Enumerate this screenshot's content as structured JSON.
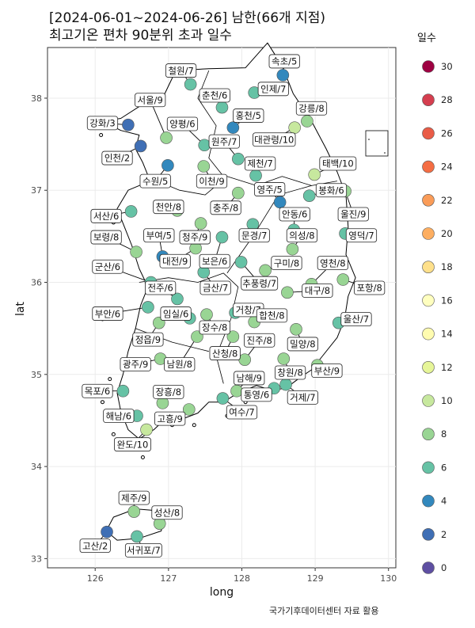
{
  "title_line1": "[2024-06-01~2024-06-26] 남한(66개 지점)",
  "title_line2": "최고기온 편차 90분위 초과 일수",
  "caption": "국가기후데이터센터 자료 활용",
  "axes": {
    "xlabel": "long",
    "ylabel": "lat",
    "xlim": [
      125.35,
      130.1
    ],
    "ylim": [
      32.9,
      38.55
    ],
    "xticks": [
      "126",
      "127",
      "128",
      "129",
      "130"
    ],
    "yticks": [
      "33",
      "34",
      "35",
      "36",
      "37",
      "38"
    ]
  },
  "legend": {
    "title": "일수",
    "items": [
      {
        "label": "30",
        "color": "#9e0142"
      },
      {
        "label": "28",
        "color": "#d53e4f"
      },
      {
        "label": "26",
        "color": "#e95c47"
      },
      {
        "label": "24",
        "color": "#f46d43"
      },
      {
        "label": "22",
        "color": "#fa9c58"
      },
      {
        "label": "20",
        "color": "#fdae61"
      },
      {
        "label": "18",
        "color": "#fee08b"
      },
      {
        "label": "16",
        "color": "#ffffbf"
      },
      {
        "label": "14",
        "color": "#fffcb0"
      },
      {
        "label": "12",
        "color": "#e6f598"
      },
      {
        "label": "10",
        "color": "#c7e89e"
      },
      {
        "label": "8",
        "color": "#99d594"
      },
      {
        "label": "6",
        "color": "#66c2a5"
      },
      {
        "label": "4",
        "color": "#3288bd"
      },
      {
        "label": "2",
        "color": "#3f6fb5"
      },
      {
        "label": "0",
        "color": "#5e4fa2"
      }
    ]
  },
  "map_data": {
    "type": "scatter-map",
    "stations": [
      {
        "name": "속초",
        "lon": 128.56,
        "lat": 38.25,
        "value": 5,
        "label": "속초/5",
        "llon": 128.58,
        "llat": 38.4
      },
      {
        "name": "철원",
        "lon": 127.3,
        "lat": 38.15,
        "value": 7,
        "label": "철원/7",
        "llon": 127.17,
        "llat": 38.3
      },
      {
        "name": "인제",
        "lon": 128.17,
        "lat": 38.06,
        "value": 7,
        "label": "인제/7",
        "llon": 128.43,
        "llat": 38.1
      },
      {
        "name": "춘천",
        "lon": 127.73,
        "lat": 37.9,
        "value": 6,
        "label": "춘천/6",
        "llon": 127.63,
        "llat": 38.03
      },
      {
        "name": "서울",
        "lon": 126.97,
        "lat": 37.57,
        "value": 9,
        "label": "서울/9",
        "llon": 126.75,
        "llat": 37.98
      },
      {
        "name": "강릉",
        "lon": 128.89,
        "lat": 37.75,
        "value": 8,
        "label": "강릉/8",
        "llon": 128.95,
        "llat": 37.89
      },
      {
        "name": "홍천",
        "lon": 127.88,
        "lat": 37.68,
        "value": 5,
        "label": "홍천/5",
        "llon": 128.09,
        "llat": 37.81
      },
      {
        "name": "강화",
        "lon": 126.45,
        "lat": 37.71,
        "value": 3,
        "label": "강화/3",
        "llon": 126.1,
        "llat": 37.73
      },
      {
        "name": "양평",
        "lon": 127.49,
        "lat": 37.49,
        "value": 6,
        "label": "양평/6",
        "llon": 127.19,
        "llat": 37.72
      },
      {
        "name": "대관령",
        "lon": 128.72,
        "lat": 37.68,
        "value": 10,
        "label": "대관령/10",
        "llon": 128.44,
        "llat": 37.55
      },
      {
        "name": "원주",
        "lon": 127.95,
        "lat": 37.34,
        "value": 7,
        "label": "원주/7",
        "llon": 127.76,
        "llat": 37.53
      },
      {
        "name": "인천",
        "lon": 126.62,
        "lat": 37.48,
        "value": 2,
        "label": "인천/2",
        "llon": 126.3,
        "llat": 37.35
      },
      {
        "name": "제천",
        "lon": 128.19,
        "lat": 37.16,
        "value": 7,
        "label": "제천/7",
        "llon": 128.25,
        "llat": 37.29
      },
      {
        "name": "태백",
        "lon": 128.99,
        "lat": 37.17,
        "value": 10,
        "label": "태백/10",
        "llon": 129.31,
        "llat": 37.29
      },
      {
        "name": "수원",
        "lon": 126.99,
        "lat": 37.27,
        "value": 5,
        "label": "수원/5",
        "llon": 126.82,
        "llat": 37.1
      },
      {
        "name": "이천",
        "lon": 127.48,
        "lat": 37.26,
        "value": 9,
        "label": "이천/9",
        "llon": 127.59,
        "llat": 37.1
      },
      {
        "name": "영주",
        "lon": 128.52,
        "lat": 36.87,
        "value": 5,
        "label": "영주/5",
        "llon": 128.38,
        "llat": 37.01
      },
      {
        "name": "봉화",
        "lon": 128.92,
        "lat": 36.94,
        "value": 6,
        "label": "봉화/6",
        "llon": 129.22,
        "llat": 37.0
      },
      {
        "name": "충주",
        "lon": 127.95,
        "lat": 36.97,
        "value": 8,
        "label": "충주/8",
        "llon": 127.78,
        "llat": 36.81
      },
      {
        "name": "천안",
        "lon": 127.12,
        "lat": 36.78,
        "value": 8,
        "label": "천안/8",
        "llon": 127.0,
        "llat": 36.82
      },
      {
        "name": "서산",
        "lon": 126.49,
        "lat": 36.77,
        "value": 6,
        "label": "서산/6",
        "llon": 126.15,
        "llat": 36.72
      },
      {
        "name": "안동",
        "lon": 128.71,
        "lat": 36.57,
        "value": 6,
        "label": "안동/6",
        "llon": 128.72,
        "llat": 36.74
      },
      {
        "name": "울진",
        "lon": 129.41,
        "lat": 36.99,
        "value": 9,
        "label": "울진/9",
        "llon": 129.52,
        "llat": 36.74
      },
      {
        "name": "보령",
        "lon": 126.56,
        "lat": 36.33,
        "value": 8,
        "label": "보령/8",
        "llon": 126.15,
        "llat": 36.49
      },
      {
        "name": "부여",
        "lon": 126.92,
        "lat": 36.28,
        "value": 5,
        "label": "부여/5",
        "llon": 126.87,
        "llat": 36.51
      },
      {
        "name": "청주",
        "lon": 127.44,
        "lat": 36.64,
        "value": 9,
        "label": "청주/9",
        "llon": 127.36,
        "llat": 36.49
      },
      {
        "name": "문경",
        "lon": 128.15,
        "lat": 36.63,
        "value": 7,
        "label": "문경/7",
        "llon": 128.17,
        "llat": 36.51
      },
      {
        "name": "의성",
        "lon": 128.69,
        "lat": 36.36,
        "value": 8,
        "label": "의성/8",
        "llon": 128.82,
        "llat": 36.51
      },
      {
        "name": "영덕",
        "lon": 129.41,
        "lat": 36.53,
        "value": 7,
        "label": "영덕/7",
        "llon": 129.63,
        "llat": 36.51
      },
      {
        "name": "군산",
        "lon": 126.76,
        "lat": 36.0,
        "value": 6,
        "label": "군산/6",
        "llon": 126.17,
        "llat": 36.17
      },
      {
        "name": "대전",
        "lon": 127.37,
        "lat": 36.37,
        "value": 9,
        "label": "대전/9",
        "llon": 127.09,
        "llat": 36.23
      },
      {
        "name": "보은",
        "lon": 127.73,
        "lat": 36.49,
        "value": 6,
        "label": "보은/6",
        "llon": 127.63,
        "llat": 36.23
      },
      {
        "name": "구미",
        "lon": 128.32,
        "lat": 36.13,
        "value": 8,
        "label": "구미/8",
        "llon": 128.61,
        "llat": 36.21
      },
      {
        "name": "영천",
        "lon": 128.95,
        "lat": 35.98,
        "value": 8,
        "label": "영천/8",
        "llon": 129.24,
        "llat": 36.21
      },
      {
        "name": "추풍령",
        "lon": 127.99,
        "lat": 36.22,
        "value": 7,
        "label": "추풍령/7",
        "llon": 128.24,
        "llat": 35.99
      },
      {
        "name": "전주",
        "lon": 127.12,
        "lat": 35.82,
        "value": 6,
        "label": "전주/6",
        "llon": 126.89,
        "llat": 35.94
      },
      {
        "name": "금산",
        "lon": 127.48,
        "lat": 36.11,
        "value": 7,
        "label": "금산/7",
        "llon": 127.64,
        "llat": 35.94
      },
      {
        "name": "포항",
        "lon": 129.38,
        "lat": 36.03,
        "value": 8,
        "label": "포항/8",
        "llon": 129.74,
        "llat": 35.94
      },
      {
        "name": "대구",
        "lon": 128.62,
        "lat": 35.89,
        "value": 8,
        "label": "대구/8",
        "llon": 129.03,
        "llat": 35.91
      },
      {
        "name": "부안",
        "lon": 126.72,
        "lat": 35.73,
        "value": 6,
        "label": "부안/6",
        "llon": 126.17,
        "llat": 35.66
      },
      {
        "name": "임실",
        "lon": 127.29,
        "lat": 35.61,
        "value": 6,
        "label": "임실/6",
        "llon": 127.1,
        "llat": 35.66
      },
      {
        "name": "거창",
        "lon": 127.91,
        "lat": 35.67,
        "value": 7,
        "label": "거창/7",
        "llon": 128.09,
        "llat": 35.7
      },
      {
        "name": "합천",
        "lon": 128.17,
        "lat": 35.57,
        "value": 8,
        "label": "합천/8",
        "llon": 128.41,
        "llat": 35.64
      },
      {
        "name": "울산",
        "lon": 129.32,
        "lat": 35.56,
        "value": 7,
        "label": "울산/7",
        "llon": 129.56,
        "llat": 35.6
      },
      {
        "name": "장수",
        "lon": 127.52,
        "lat": 35.65,
        "value": 8,
        "label": "장수/8",
        "llon": 127.63,
        "llat": 35.51
      },
      {
        "name": "정읍",
        "lon": 126.87,
        "lat": 35.56,
        "value": 9,
        "label": "정읍/9",
        "llon": 126.72,
        "llat": 35.38
      },
      {
        "name": "진주",
        "lon": 128.04,
        "lat": 35.16,
        "value": 8,
        "label": "진주/8",
        "llon": 128.24,
        "llat": 35.37
      },
      {
        "name": "밀양",
        "lon": 128.74,
        "lat": 35.49,
        "value": 8,
        "label": "밀양/8",
        "llon": 128.83,
        "llat": 35.33
      },
      {
        "name": "광주",
        "lon": 126.89,
        "lat": 35.17,
        "value": 9,
        "label": "광주/9",
        "llon": 126.55,
        "llat": 35.11
      },
      {
        "name": "남원",
        "lon": 127.39,
        "lat": 35.41,
        "value": 8,
        "label": "남원/8",
        "llon": 127.15,
        "llat": 35.11
      },
      {
        "name": "산청",
        "lon": 127.88,
        "lat": 35.41,
        "value": 8,
        "label": "산청/8",
        "llon": 127.77,
        "llat": 35.23
      },
      {
        "name": "부산",
        "lon": 129.03,
        "lat": 35.1,
        "value": 9,
        "label": "부산/9",
        "llon": 129.16,
        "llat": 35.04
      },
      {
        "name": "창원",
        "lon": 128.57,
        "lat": 35.17,
        "value": 8,
        "label": "창원/8",
        "llon": 128.66,
        "llat": 35.02
      },
      {
        "name": "남해",
        "lon": 127.93,
        "lat": 34.82,
        "value": 9,
        "label": "남해/9",
        "llon": 128.1,
        "llat": 34.96
      },
      {
        "name": "목포",
        "lon": 126.38,
        "lat": 34.82,
        "value": 6,
        "label": "목포/6",
        "llon": 126.03,
        "llat": 34.82
      },
      {
        "name": "장흥",
        "lon": 126.92,
        "lat": 34.69,
        "value": 8,
        "label": "장흥/8",
        "llon": 127.0,
        "llat": 34.81
      },
      {
        "name": "통영",
        "lon": 128.44,
        "lat": 34.85,
        "value": 6,
        "label": "통영/6",
        "llon": 128.2,
        "llat": 34.78
      },
      {
        "name": "거제",
        "lon": 128.6,
        "lat": 34.89,
        "value": 7,
        "label": "거제/7",
        "llon": 128.83,
        "llat": 34.75
      },
      {
        "name": "해남",
        "lon": 126.57,
        "lat": 34.55,
        "value": 6,
        "label": "해남/6",
        "llon": 126.32,
        "llat": 34.55
      },
      {
        "name": "여수",
        "lon": 127.74,
        "lat": 34.74,
        "value": 7,
        "label": "여수/7",
        "llon": 128.0,
        "llat": 34.59
      },
      {
        "name": "고흥",
        "lon": 127.28,
        "lat": 34.62,
        "value": 9,
        "label": "고흥/9",
        "llon": 127.02,
        "llat": 34.52
      },
      {
        "name": "완도",
        "lon": 126.7,
        "lat": 34.4,
        "value": 10,
        "label": "완도/10",
        "llon": 126.51,
        "llat": 34.24
      },
      {
        "name": "제주",
        "lon": 126.53,
        "lat": 33.51,
        "value": 9,
        "label": "제주/9",
        "llon": 126.53,
        "llat": 33.66
      },
      {
        "name": "성산",
        "lon": 126.88,
        "lat": 33.38,
        "value": 8,
        "label": "성산/8",
        "llon": 126.98,
        "llat": 33.5
      },
      {
        "name": "고산",
        "lon": 126.16,
        "lat": 33.29,
        "value": 2,
        "label": "고산/2",
        "llon": 126.0,
        "llat": 33.14
      },
      {
        "name": "서귀포",
        "lon": 126.57,
        "lat": 33.24,
        "value": 7,
        "label": "서귀포/7",
        "llon": 126.66,
        "llat": 33.09
      }
    ]
  }
}
